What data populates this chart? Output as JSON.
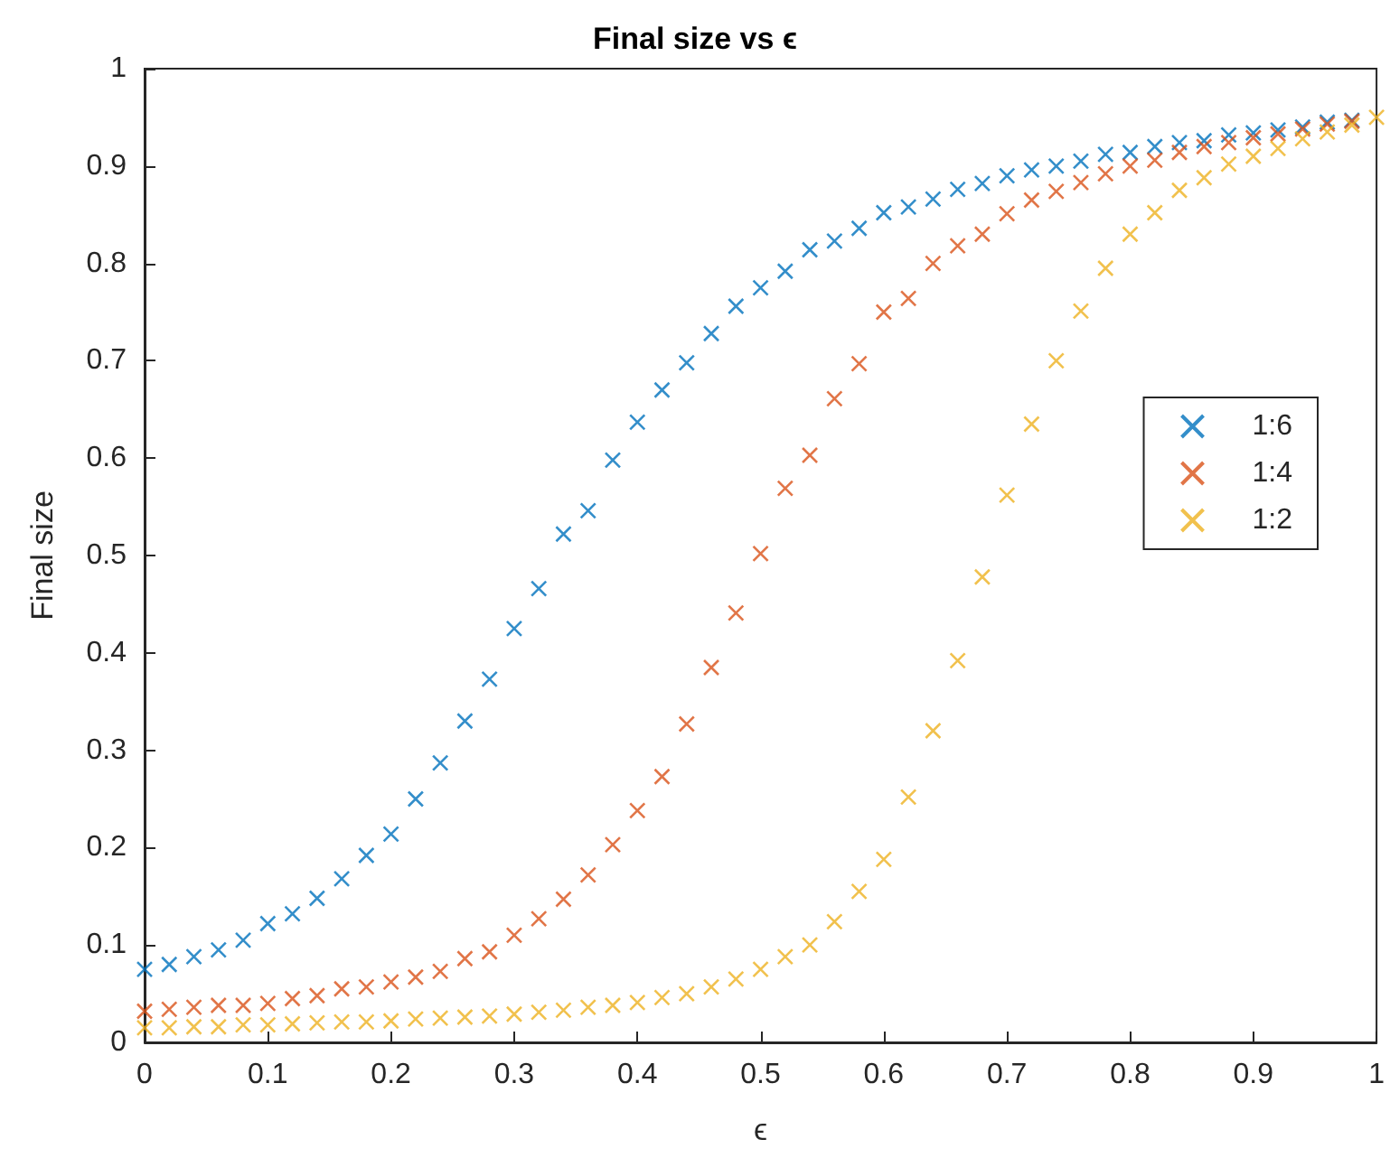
{
  "chart_data": {
    "type": "scatter",
    "title": "Final size vs ϵ",
    "xlabel": "ϵ",
    "ylabel": "Final size",
    "xlim": [
      0,
      1
    ],
    "xticks": [
      0,
      0.1,
      0.2,
      0.3,
      0.4,
      0.5,
      0.6,
      0.7,
      0.8,
      0.9,
      1
    ],
    "ylim": [
      0,
      1
    ],
    "yticks": [
      0,
      0.1,
      0.2,
      0.3,
      0.4,
      0.5,
      0.6,
      0.7,
      0.8,
      0.9,
      1
    ],
    "grid": false,
    "legend": "right",
    "marker": "cross",
    "series": [
      {
        "name": "1:6",
        "color": "#0072bd",
        "x": [
          0,
          0.02,
          0.04,
          0.06,
          0.08,
          0.1,
          0.12,
          0.14,
          0.16,
          0.18,
          0.2,
          0.22,
          0.24,
          0.26,
          0.28,
          0.3,
          0.32,
          0.34,
          0.36,
          0.38,
          0.4,
          0.42,
          0.44,
          0.46,
          0.48,
          0.5,
          0.52,
          0.54,
          0.56,
          0.58,
          0.6,
          0.62,
          0.64,
          0.66,
          0.68,
          0.7,
          0.72,
          0.74,
          0.76,
          0.78,
          0.8,
          0.82,
          0.84,
          0.86,
          0.88,
          0.9,
          0.92,
          0.94,
          0.96,
          0.98
        ],
        "values": [
          0.075,
          0.08,
          0.088,
          0.095,
          0.105,
          0.122,
          0.132,
          0.148,
          0.168,
          0.192,
          0.214,
          0.25,
          0.287,
          0.33,
          0.373,
          0.425,
          0.466,
          0.522,
          0.546,
          0.598,
          0.637,
          0.67,
          0.698,
          0.728,
          0.756,
          0.775,
          0.792,
          0.814,
          0.823,
          0.836,
          0.852,
          0.858,
          0.866,
          0.876,
          0.882,
          0.89,
          0.896,
          0.9,
          0.905,
          0.912,
          0.914,
          0.92,
          0.924,
          0.926,
          0.932,
          0.934,
          0.937,
          0.94,
          0.945,
          0.947
        ]
      },
      {
        "name": "1:4",
        "color": "#d95319",
        "x": [
          0,
          0.02,
          0.04,
          0.06,
          0.08,
          0.1,
          0.12,
          0.14,
          0.16,
          0.18,
          0.2,
          0.22,
          0.24,
          0.26,
          0.28,
          0.3,
          0.32,
          0.34,
          0.36,
          0.38,
          0.4,
          0.42,
          0.44,
          0.46,
          0.48,
          0.5,
          0.52,
          0.54,
          0.56,
          0.58,
          0.6,
          0.62,
          0.64,
          0.66,
          0.68,
          0.7,
          0.72,
          0.74,
          0.76,
          0.78,
          0.8,
          0.82,
          0.84,
          0.86,
          0.88,
          0.9,
          0.92,
          0.94,
          0.96,
          0.98
        ],
        "values": [
          0.032,
          0.034,
          0.036,
          0.038,
          0.038,
          0.04,
          0.045,
          0.048,
          0.055,
          0.057,
          0.062,
          0.067,
          0.073,
          0.086,
          0.093,
          0.11,
          0.127,
          0.147,
          0.172,
          0.203,
          0.238,
          0.273,
          0.327,
          0.385,
          0.441,
          0.502,
          0.569,
          0.603,
          0.661,
          0.697,
          0.75,
          0.764,
          0.8,
          0.818,
          0.83,
          0.851,
          0.865,
          0.874,
          0.883,
          0.892,
          0.9,
          0.906,
          0.914,
          0.92,
          0.924,
          0.929,
          0.933,
          0.938,
          0.943,
          0.946
        ]
      },
      {
        "name": "1:2",
        "color": "#edb120",
        "x": [
          0,
          0.02,
          0.04,
          0.06,
          0.08,
          0.1,
          0.12,
          0.14,
          0.16,
          0.18,
          0.2,
          0.22,
          0.24,
          0.26,
          0.28,
          0.3,
          0.32,
          0.34,
          0.36,
          0.38,
          0.4,
          0.42,
          0.44,
          0.46,
          0.48,
          0.5,
          0.52,
          0.54,
          0.56,
          0.58,
          0.6,
          0.62,
          0.64,
          0.66,
          0.68,
          0.7,
          0.72,
          0.74,
          0.76,
          0.78,
          0.8,
          0.82,
          0.84,
          0.86,
          0.88,
          0.9,
          0.92,
          0.94,
          0.96,
          0.98,
          1
        ],
        "values": [
          0.015,
          0.015,
          0.016,
          0.016,
          0.018,
          0.018,
          0.019,
          0.02,
          0.021,
          0.021,
          0.022,
          0.024,
          0.025,
          0.026,
          0.027,
          0.029,
          0.031,
          0.033,
          0.036,
          0.038,
          0.041,
          0.046,
          0.05,
          0.057,
          0.065,
          0.075,
          0.088,
          0.1,
          0.124,
          0.155,
          0.188,
          0.252,
          0.32,
          0.392,
          0.478,
          0.562,
          0.635,
          0.7,
          0.751,
          0.795,
          0.83,
          0.852,
          0.875,
          0.888,
          0.902,
          0.91,
          0.918,
          0.928,
          0.935,
          0.942,
          0.95
        ]
      }
    ]
  }
}
